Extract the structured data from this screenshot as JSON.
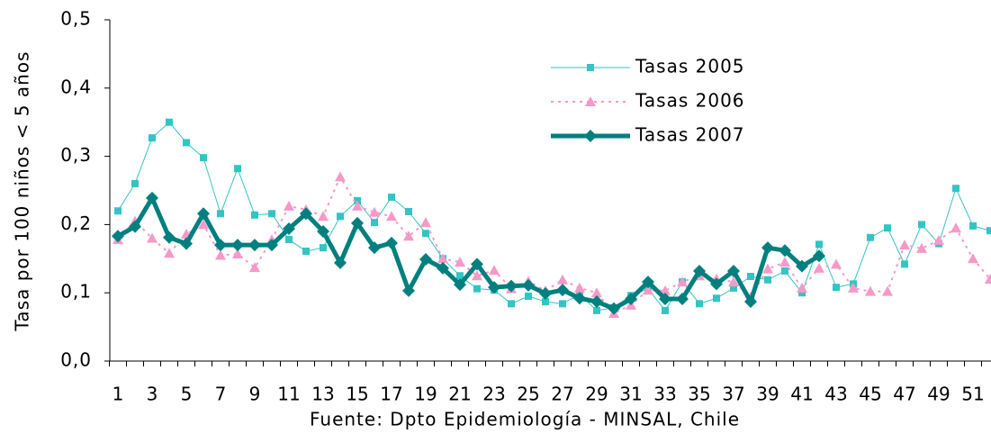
{
  "chart_data": {
    "type": "line",
    "y_label": "Tasa por 100 niños < 5 años",
    "caption": "Fuente: Dpto Epidemiología - MINSAL, Chile",
    "categories": [
      "1",
      null,
      "3",
      null,
      "5",
      null,
      "7",
      null,
      "9",
      null,
      "11",
      null,
      "13",
      null,
      "15",
      null,
      "17",
      null,
      "19",
      null,
      "21",
      null,
      "23",
      null,
      "25",
      null,
      "27",
      null,
      "29",
      null,
      "31",
      null,
      "33",
      null,
      "35",
      null,
      "37",
      null,
      "39",
      null,
      "41",
      null,
      "43",
      null,
      "45",
      null,
      "47",
      null,
      "49",
      null,
      "51",
      null
    ],
    "series": [
      {
        "name": "Tasas 2005",
        "color": "#33c4c4",
        "marker": "square",
        "line_style": "thin",
        "values": [
          0.22,
          0.26,
          0.327,
          0.35,
          0.32,
          0.298,
          0.216,
          0.282,
          0.214,
          0.216,
          0.178,
          0.161,
          0.166,
          0.212,
          0.235,
          0.203,
          0.24,
          0.219,
          0.187,
          0.15,
          0.125,
          0.106,
          0.104,
          0.084,
          0.095,
          0.087,
          0.084,
          0.098,
          0.074,
          0.078,
          0.096,
          0.106,
          0.074,
          0.116,
          0.084,
          0.092,
          0.107,
          0.124,
          0.119,
          0.132,
          0.1,
          0.171,
          0.108,
          0.113,
          0.181,
          0.195,
          0.142,
          0.2,
          0.172,
          0.253,
          0.198,
          0.191
        ]
      },
      {
        "name": "Tasas 2006",
        "color": "#f59ac8",
        "marker": "triangle",
        "line_style": "dotted",
        "values": [
          0.178,
          0.205,
          0.18,
          0.158,
          0.186,
          0.2,
          0.155,
          0.157,
          0.137,
          0.178,
          0.227,
          0.222,
          0.212,
          0.27,
          0.227,
          0.218,
          0.212,
          0.183,
          0.203,
          0.15,
          0.145,
          0.125,
          0.133,
          0.106,
          0.117,
          0.103,
          0.119,
          0.107,
          0.1,
          0.07,
          0.082,
          0.104,
          0.103,
          0.116,
          0.125,
          0.12,
          0.116,
          0.094,
          0.135,
          0.145,
          0.107,
          0.136,
          0.142,
          0.107,
          0.102,
          0.102,
          0.17,
          0.165,
          0.177,
          0.195,
          0.15,
          0.12
        ]
      },
      {
        "name": "Tasas 2007",
        "color": "#007f7f",
        "marker": "diamond",
        "line_style": "bold",
        "values": [
          0.183,
          0.197,
          0.239,
          0.181,
          0.172,
          0.216,
          0.17,
          0.17,
          0.17,
          0.17,
          0.194,
          0.216,
          0.19,
          0.144,
          0.202,
          0.166,
          0.173,
          0.103,
          0.149,
          0.136,
          0.112,
          0.142,
          0.108,
          0.11,
          0.111,
          0.099,
          0.104,
          0.092,
          0.087,
          0.077,
          0.091,
          0.116,
          0.091,
          0.091,
          0.132,
          0.113,
          0.132,
          0.087,
          0.166,
          0.162,
          0.139,
          0.154,
          null,
          null,
          null,
          null,
          null,
          null,
          null,
          null,
          null,
          null
        ]
      }
    ],
    "ylim": [
      0,
      0.5
    ],
    "yticks": [
      {
        "value": 0,
        "label": "0,0"
      },
      {
        "value": 0.1,
        "label": "0,1"
      },
      {
        "value": 0.2,
        "label": "0,2"
      },
      {
        "value": 0.3,
        "label": "0,3"
      },
      {
        "value": 0.4,
        "label": "0,4"
      },
      {
        "value": 0.5,
        "label": "0,5"
      }
    ],
    "grid": false,
    "legend": "upper center"
  }
}
